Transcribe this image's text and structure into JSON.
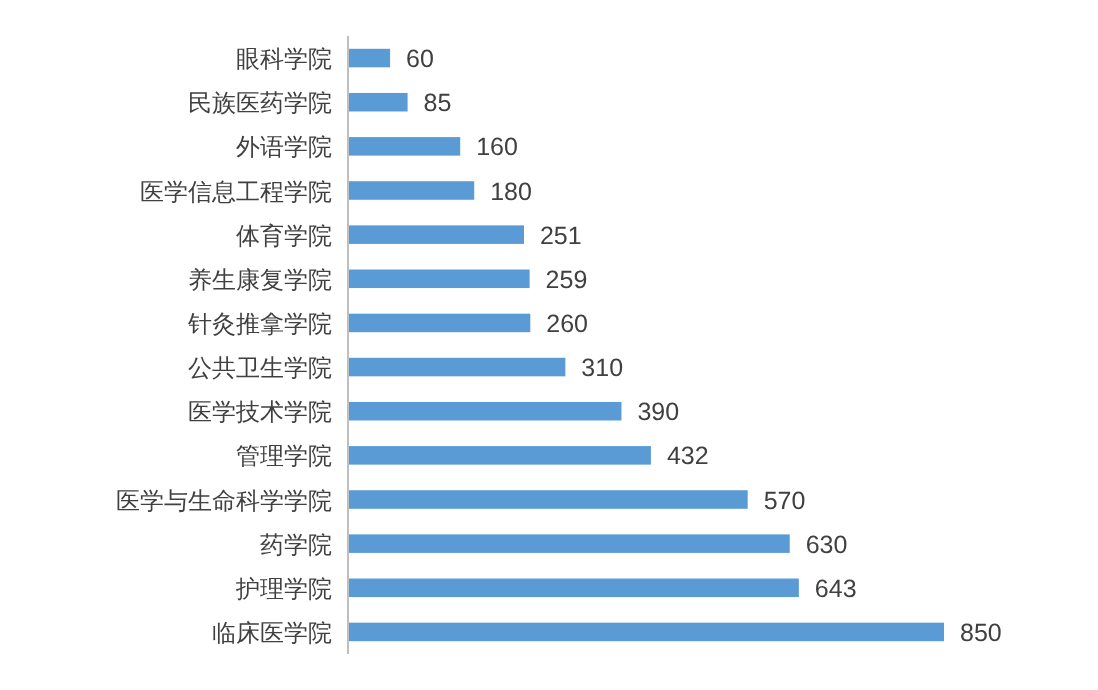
{
  "chart_data": {
    "type": "bar",
    "orientation": "horizontal",
    "categories": [
      "眼科学院",
      "民族医药学院",
      "外语学院",
      "医学信息工程学院",
      "体育学院",
      "养生康复学院",
      "针灸推拿学院",
      "公共卫生学院",
      "医学技术学院",
      "管理学院",
      "医学与生命科学学院",
      "药学院",
      "护理学院",
      "临床医学院"
    ],
    "values": [
      60,
      85,
      160,
      180,
      251,
      259,
      260,
      310,
      390,
      432,
      570,
      630,
      643,
      850
    ],
    "color": "#5b9bd5",
    "data_labels": true
  }
}
